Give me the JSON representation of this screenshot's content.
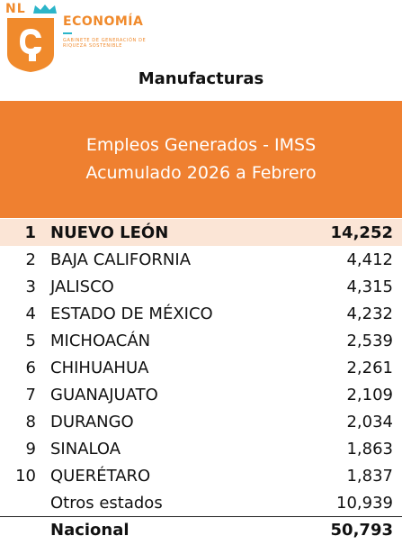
{
  "header": {
    "brand_prefix": "NL",
    "brand_title": "ECONOMÍA",
    "brand_subtitle": "Gabinete de Generación de Riqueza Sostenible",
    "logo_icon": "nuevo-leon-shield-icon"
  },
  "section_title": "Manufacturas",
  "banner": {
    "line1": "Empleos Generados - IMSS",
    "line2": "Acumulado 2026 a Febrero"
  },
  "colors": {
    "accent_orange": "#ef8030",
    "highlight_row": "#fbe5d6",
    "brand_teal": "#2bb5c9"
  },
  "rows": [
    {
      "rank": "1",
      "state": "NUEVO LEÓN",
      "value": "14,252"
    },
    {
      "rank": "2",
      "state": "BAJA CALIFORNIA",
      "value": "4,412"
    },
    {
      "rank": "3",
      "state": "JALISCO",
      "value": "4,315"
    },
    {
      "rank": "4",
      "state": "ESTADO DE MÉXICO",
      "value": "4,232"
    },
    {
      "rank": "5",
      "state": "MICHOACÁN",
      "value": "2,539"
    },
    {
      "rank": "6",
      "state": "CHIHUAHUA",
      "value": "2,261"
    },
    {
      "rank": "7",
      "state": "GUANAJUATO",
      "value": "2,109"
    },
    {
      "rank": "8",
      "state": "DURANGO",
      "value": "2,034"
    },
    {
      "rank": "9",
      "state": "SINALOA",
      "value": "1,863"
    },
    {
      "rank": "10",
      "state": "QUERÉTARO",
      "value": "1,837"
    }
  ],
  "others": {
    "label": "Otros estados",
    "value": "10,939"
  },
  "national": {
    "label": "Nacional",
    "value": "50,793"
  }
}
